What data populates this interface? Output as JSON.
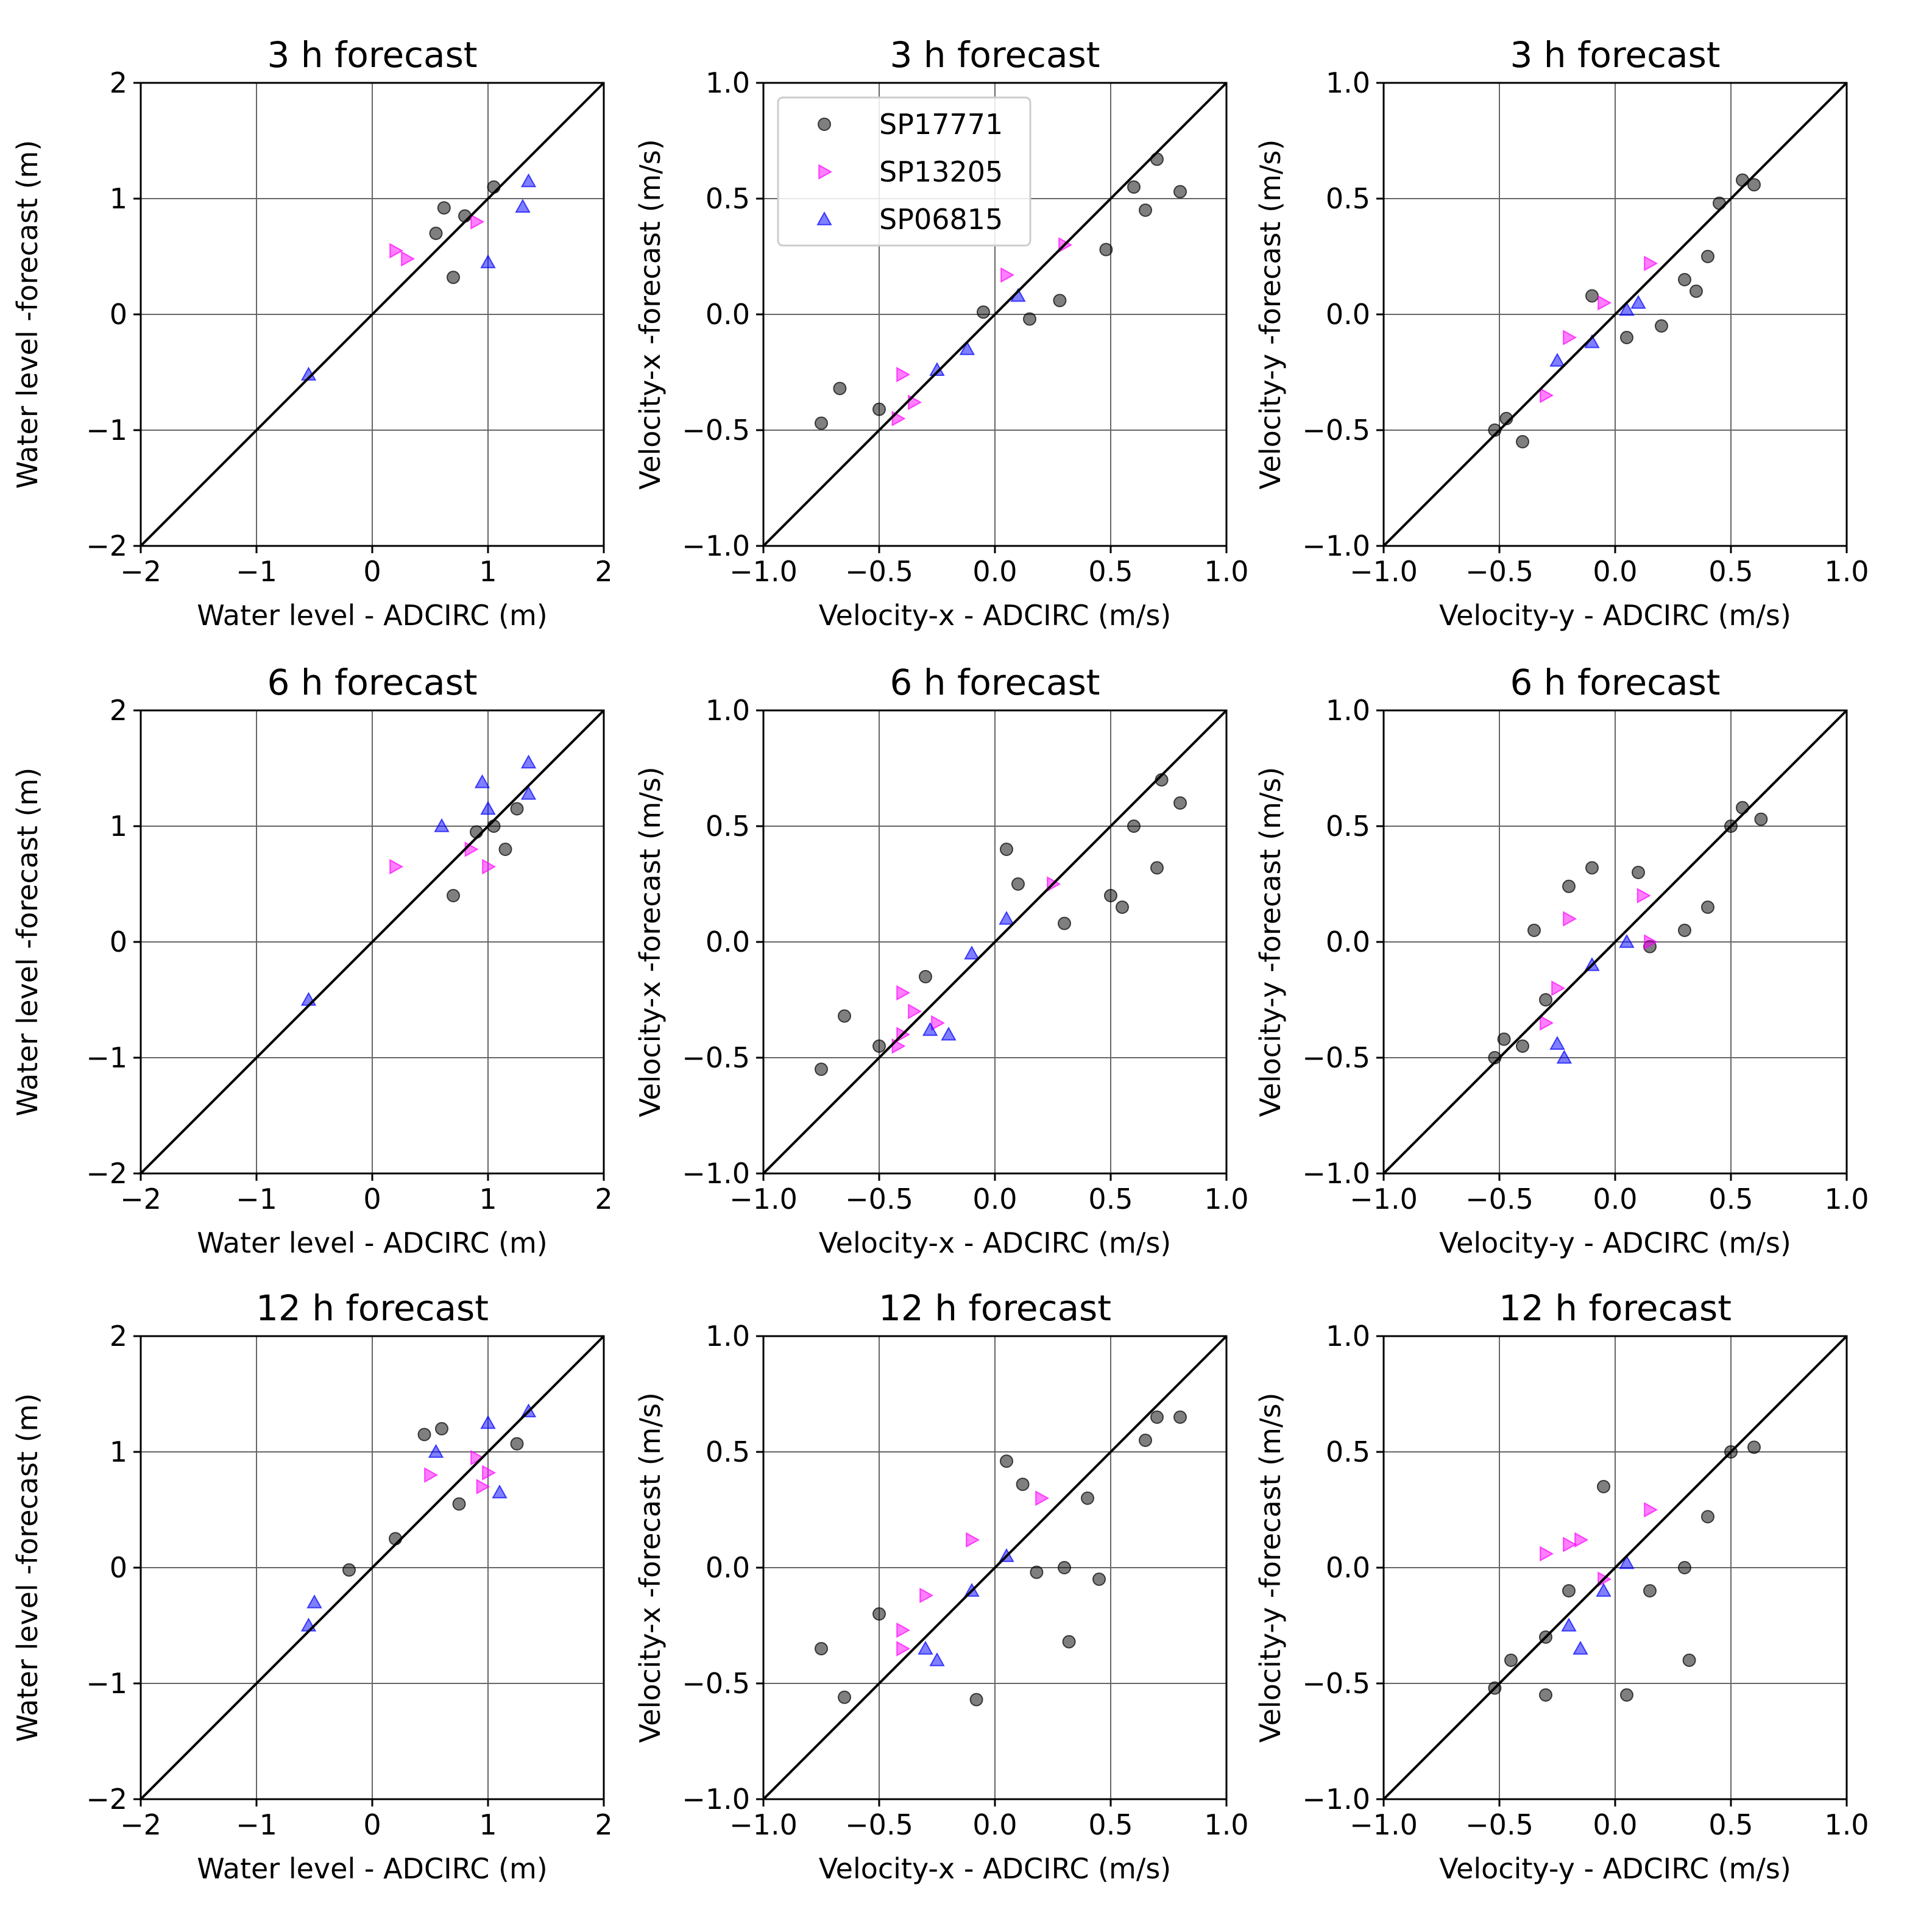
{
  "figure": {
    "type": "scatter-grid",
    "rows": 3,
    "cols": 3
  },
  "legend": {
    "placement": "top-left of row 1, column 2",
    "entries": [
      {
        "label": "SP17771",
        "marker": "circle",
        "color": "#000000"
      },
      {
        "label": "SP13205",
        "marker": "triangle-right",
        "color": "#ff00ff"
      },
      {
        "label": "SP06815",
        "marker": "triangle-up",
        "color": "#0000ff"
      }
    ]
  },
  "chart_data": [
    {
      "type": "scatter",
      "row": 0,
      "col": 0,
      "title": "3 h forecast",
      "xlabel": "Water level - ADCIRC (m)",
      "ylabel": "Water level -forecast (m)",
      "xlim": [
        -2,
        2
      ],
      "ylim": [
        -2,
        2
      ],
      "ticks": [
        -2,
        -1,
        0,
        1,
        2
      ],
      "tick_labels": [
        "−2",
        "−1",
        "0",
        "1",
        "2"
      ],
      "grid": true,
      "identity_line": true,
      "series": [
        {
          "name": "SP17771",
          "points": [
            [
              0.62,
              0.92
            ],
            [
              0.8,
              0.85
            ],
            [
              1.05,
              1.1
            ],
            [
              0.7,
              0.32
            ],
            [
              0.55,
              0.7
            ]
          ]
        },
        {
          "name": "SP13205",
          "points": [
            [
              0.2,
              0.55
            ],
            [
              0.3,
              0.48
            ],
            [
              0.9,
              0.8
            ]
          ]
        },
        {
          "name": "SP06815",
          "points": [
            [
              1.35,
              1.15
            ],
            [
              1.3,
              0.93
            ],
            [
              1.0,
              0.45
            ],
            [
              -0.55,
              -0.52
            ]
          ]
        }
      ]
    },
    {
      "type": "scatter",
      "row": 0,
      "col": 1,
      "title": "3 h forecast",
      "xlabel": "Velocity-x - ADCIRC (m/s)",
      "ylabel": "Velocity-x -forecast (m/s)",
      "xlim": [
        -1,
        1
      ],
      "ylim": [
        -1,
        1
      ],
      "ticks": [
        -1,
        -0.5,
        0,
        0.5,
        1
      ],
      "tick_labels": [
        "−1.0",
        "−0.5",
        "0.0",
        "0.5",
        "1.0"
      ],
      "grid": true,
      "identity_line": true,
      "show_legend": true,
      "series": [
        {
          "name": "SP17771",
          "points": [
            [
              -0.75,
              -0.47
            ],
            [
              -0.67,
              -0.32
            ],
            [
              -0.5,
              -0.41
            ],
            [
              0.8,
              0.53
            ],
            [
              0.7,
              0.67
            ],
            [
              0.65,
              0.45
            ],
            [
              0.28,
              0.06
            ],
            [
              0.48,
              0.28
            ],
            [
              0.6,
              0.55
            ],
            [
              0.15,
              -0.02
            ],
            [
              -0.05,
              0.01
            ]
          ]
        },
        {
          "name": "SP13205",
          "points": [
            [
              -0.4,
              -0.26
            ],
            [
              -0.42,
              -0.45
            ],
            [
              -0.35,
              -0.38
            ],
            [
              0.05,
              0.17
            ],
            [
              0.3,
              0.3
            ]
          ]
        },
        {
          "name": "SP06815",
          "points": [
            [
              -0.25,
              -0.24
            ],
            [
              0.1,
              0.08
            ],
            [
              -0.12,
              -0.15
            ]
          ]
        }
      ]
    },
    {
      "type": "scatter",
      "row": 0,
      "col": 2,
      "title": "3 h forecast",
      "xlabel": "Velocity-y - ADCIRC (m/s)",
      "ylabel": "Velocity-y -forecast (m/s)",
      "xlim": [
        -1,
        1
      ],
      "ylim": [
        -1,
        1
      ],
      "ticks": [
        -1,
        -0.5,
        0,
        0.5,
        1
      ],
      "tick_labels": [
        "−1.0",
        "−0.5",
        "0.0",
        "0.5",
        "1.0"
      ],
      "grid": true,
      "identity_line": true,
      "series": [
        {
          "name": "SP17771",
          "points": [
            [
              -0.52,
              -0.5
            ],
            [
              -0.47,
              -0.45
            ],
            [
              -0.4,
              -0.55
            ],
            [
              0.6,
              0.56
            ],
            [
              0.55,
              0.58
            ],
            [
              0.45,
              0.48
            ],
            [
              0.3,
              0.15
            ],
            [
              0.4,
              0.25
            ],
            [
              -0.1,
              0.08
            ],
            [
              0.05,
              -0.1
            ],
            [
              0.2,
              -0.05
            ],
            [
              0.35,
              0.1
            ]
          ]
        },
        {
          "name": "SP13205",
          "points": [
            [
              -0.3,
              -0.35
            ],
            [
              -0.2,
              -0.1
            ],
            [
              -0.05,
              0.05
            ],
            [
              0.15,
              0.22
            ]
          ]
        },
        {
          "name": "SP06815",
          "points": [
            [
              -0.25,
              -0.2
            ],
            [
              -0.1,
              -0.12
            ],
            [
              0.1,
              0.05
            ],
            [
              0.05,
              0.02
            ]
          ]
        }
      ]
    },
    {
      "type": "scatter",
      "row": 1,
      "col": 0,
      "title": "6 h forecast",
      "xlabel": "Water level - ADCIRC (m)",
      "ylabel": "Water level -forecast (m)",
      "xlim": [
        -2,
        2
      ],
      "ylim": [
        -2,
        2
      ],
      "ticks": [
        -2,
        -1,
        0,
        1,
        2
      ],
      "tick_labels": [
        "−2",
        "−1",
        "0",
        "1",
        "2"
      ],
      "grid": true,
      "identity_line": true,
      "series": [
        {
          "name": "SP17771",
          "points": [
            [
              1.25,
              1.15
            ],
            [
              1.15,
              0.8
            ],
            [
              1.05,
              1.0
            ],
            [
              0.7,
              0.4
            ],
            [
              0.9,
              0.95
            ]
          ]
        },
        {
          "name": "SP13205",
          "points": [
            [
              1.0,
              0.65
            ],
            [
              0.2,
              0.65
            ],
            [
              0.85,
              0.8
            ]
          ]
        },
        {
          "name": "SP06815",
          "points": [
            [
              1.35,
              1.55
            ],
            [
              1.35,
              1.28
            ],
            [
              0.95,
              1.38
            ],
            [
              1.0,
              1.15
            ],
            [
              0.6,
              1.0
            ],
            [
              -0.55,
              -0.5
            ]
          ]
        }
      ]
    },
    {
      "type": "scatter",
      "row": 1,
      "col": 1,
      "title": "6 h forecast",
      "xlabel": "Velocity-x - ADCIRC (m/s)",
      "ylabel": "Velocity-x -forecast (m/s)",
      "xlim": [
        -1,
        1
      ],
      "ylim": [
        -1,
        1
      ],
      "ticks": [
        -1,
        -0.5,
        0,
        0.5,
        1
      ],
      "tick_labels": [
        "−1.0",
        "−0.5",
        "0.0",
        "0.5",
        "1.0"
      ],
      "grid": true,
      "identity_line": true,
      "series": [
        {
          "name": "SP17771",
          "points": [
            [
              -0.75,
              -0.55
            ],
            [
              -0.65,
              -0.32
            ],
            [
              -0.5,
              -0.45
            ],
            [
              0.8,
              0.6
            ],
            [
              0.72,
              0.7
            ],
            [
              0.7,
              0.32
            ],
            [
              0.05,
              0.4
            ],
            [
              0.5,
              0.2
            ],
            [
              0.55,
              0.15
            ],
            [
              0.3,
              0.08
            ],
            [
              0.6,
              0.5
            ],
            [
              0.1,
              0.25
            ],
            [
              -0.3,
              -0.15
            ]
          ]
        },
        {
          "name": "SP13205",
          "points": [
            [
              -0.4,
              -0.4
            ],
            [
              -0.42,
              -0.45
            ],
            [
              -0.35,
              -0.3
            ],
            [
              -0.4,
              -0.22
            ],
            [
              -0.25,
              -0.35
            ],
            [
              0.25,
              0.25
            ]
          ]
        },
        {
          "name": "SP06815",
          "points": [
            [
              -0.28,
              -0.38
            ],
            [
              -0.2,
              -0.4
            ],
            [
              -0.1,
              -0.05
            ],
            [
              0.05,
              0.1
            ]
          ]
        }
      ]
    },
    {
      "type": "scatter",
      "row": 1,
      "col": 2,
      "title": "6 h forecast",
      "xlabel": "Velocity-y - ADCIRC (m/s)",
      "ylabel": "Velocity-y -forecast (m/s)",
      "xlim": [
        -1,
        1
      ],
      "ylim": [
        -1,
        1
      ],
      "ticks": [
        -1,
        -0.5,
        0,
        0.5,
        1
      ],
      "tick_labels": [
        "−1.0",
        "−0.5",
        "0.0",
        "0.5",
        "1.0"
      ],
      "grid": true,
      "identity_line": true,
      "series": [
        {
          "name": "SP17771",
          "points": [
            [
              -0.52,
              -0.5
            ],
            [
              -0.48,
              -0.42
            ],
            [
              -0.4,
              -0.45
            ],
            [
              0.63,
              0.53
            ],
            [
              0.55,
              0.58
            ],
            [
              0.5,
              0.5
            ],
            [
              -0.2,
              0.24
            ],
            [
              -0.1,
              0.32
            ],
            [
              0.1,
              0.3
            ],
            [
              0.3,
              0.05
            ],
            [
              0.4,
              0.15
            ],
            [
              -0.35,
              0.05
            ],
            [
              0.15,
              -0.02
            ],
            [
              -0.3,
              -0.25
            ]
          ]
        },
        {
          "name": "SP13205",
          "points": [
            [
              -0.3,
              -0.35
            ],
            [
              -0.25,
              -0.2
            ],
            [
              -0.2,
              0.1
            ],
            [
              0.12,
              0.2
            ],
            [
              0.15,
              0.0
            ]
          ]
        },
        {
          "name": "SP06815",
          "points": [
            [
              -0.22,
              -0.5
            ],
            [
              -0.25,
              -0.44
            ],
            [
              -0.1,
              -0.1
            ],
            [
              0.05,
              0.0
            ]
          ]
        }
      ]
    },
    {
      "type": "scatter",
      "row": 2,
      "col": 0,
      "title": "12 h forecast",
      "xlabel": "Water level - ADCIRC (m)",
      "ylabel": "Water level -forecast (m)",
      "xlim": [
        -2,
        2
      ],
      "ylim": [
        -2,
        2
      ],
      "ticks": [
        -2,
        -1,
        0,
        1,
        2
      ],
      "tick_labels": [
        "−2",
        "−1",
        "0",
        "1",
        "2"
      ],
      "grid": true,
      "identity_line": true,
      "series": [
        {
          "name": "SP17771",
          "points": [
            [
              0.45,
              1.15
            ],
            [
              0.6,
              1.2
            ],
            [
              1.25,
              1.07
            ],
            [
              0.75,
              0.55
            ],
            [
              -0.2,
              -0.02
            ],
            [
              0.2,
              0.25
            ]
          ]
        },
        {
          "name": "SP13205",
          "points": [
            [
              0.9,
              0.95
            ],
            [
              1.0,
              0.82
            ],
            [
              0.95,
              0.7
            ],
            [
              0.5,
              0.8
            ]
          ]
        },
        {
          "name": "SP06815",
          "points": [
            [
              1.35,
              1.35
            ],
            [
              1.0,
              1.25
            ],
            [
              1.1,
              0.65
            ],
            [
              0.55,
              1.0
            ],
            [
              -0.55,
              -0.5
            ],
            [
              -0.5,
              -0.3
            ]
          ]
        }
      ]
    },
    {
      "type": "scatter",
      "row": 2,
      "col": 1,
      "title": "12 h forecast",
      "xlabel": "Velocity-x - ADCIRC (m/s)",
      "ylabel": "Velocity-x -forecast (m/s)",
      "xlim": [
        -1,
        1
      ],
      "ylim": [
        -1,
        1
      ],
      "ticks": [
        -1,
        -0.5,
        0,
        0.5,
        1
      ],
      "tick_labels": [
        "−1.0",
        "−0.5",
        "0.0",
        "0.5",
        "1.0"
      ],
      "grid": true,
      "identity_line": true,
      "series": [
        {
          "name": "SP17771",
          "points": [
            [
              -0.75,
              -0.35
            ],
            [
              -0.65,
              -0.56
            ],
            [
              -0.5,
              -0.2
            ],
            [
              -0.08,
              -0.57
            ],
            [
              0.32,
              -0.32
            ],
            [
              0.45,
              -0.05
            ],
            [
              0.8,
              0.65
            ],
            [
              0.7,
              0.65
            ],
            [
              0.65,
              0.55
            ],
            [
              0.05,
              0.46
            ],
            [
              0.12,
              0.36
            ],
            [
              0.4,
              0.3
            ],
            [
              0.3,
              0.0
            ],
            [
              0.18,
              -0.02
            ]
          ]
        },
        {
          "name": "SP13205",
          "points": [
            [
              -0.4,
              -0.35
            ],
            [
              -0.4,
              -0.27
            ],
            [
              -0.3,
              -0.12
            ],
            [
              -0.1,
              0.12
            ],
            [
              0.2,
              0.3
            ]
          ]
        },
        {
          "name": "SP06815",
          "points": [
            [
              -0.3,
              -0.35
            ],
            [
              -0.25,
              -0.4
            ],
            [
              -0.1,
              -0.1
            ],
            [
              0.05,
              0.05
            ]
          ]
        }
      ]
    },
    {
      "type": "scatter",
      "row": 2,
      "col": 2,
      "title": "12 h forecast",
      "xlabel": "Velocity-y - ADCIRC (m/s)",
      "ylabel": "Velocity-y -forecast (m/s)",
      "xlim": [
        -1,
        1
      ],
      "ylim": [
        -1,
        1
      ],
      "ticks": [
        -1,
        -0.5,
        0,
        0.5,
        1
      ],
      "tick_labels": [
        "−1.0",
        "−0.5",
        "0.0",
        "0.5",
        "1.0"
      ],
      "grid": true,
      "identity_line": true,
      "series": [
        {
          "name": "SP17771",
          "points": [
            [
              -0.52,
              -0.52
            ],
            [
              -0.45,
              -0.4
            ],
            [
              -0.3,
              -0.55
            ],
            [
              0.05,
              -0.55
            ],
            [
              0.32,
              -0.4
            ],
            [
              -0.05,
              0.35
            ],
            [
              0.6,
              0.52
            ],
            [
              0.5,
              0.5
            ],
            [
              0.3,
              0.0
            ],
            [
              0.4,
              0.22
            ],
            [
              0.15,
              -0.1
            ],
            [
              -0.2,
              -0.1
            ],
            [
              -0.3,
              -0.3
            ]
          ]
        },
        {
          "name": "SP13205",
          "points": [
            [
              -0.3,
              0.06
            ],
            [
              -0.2,
              0.1
            ],
            [
              -0.15,
              0.12
            ],
            [
              -0.05,
              -0.05
            ],
            [
              0.15,
              0.25
            ]
          ]
        },
        {
          "name": "SP06815",
          "points": [
            [
              -0.15,
              -0.35
            ],
            [
              -0.2,
              -0.25
            ],
            [
              -0.05,
              -0.1
            ],
            [
              0.05,
              0.02
            ]
          ]
        }
      ]
    }
  ]
}
